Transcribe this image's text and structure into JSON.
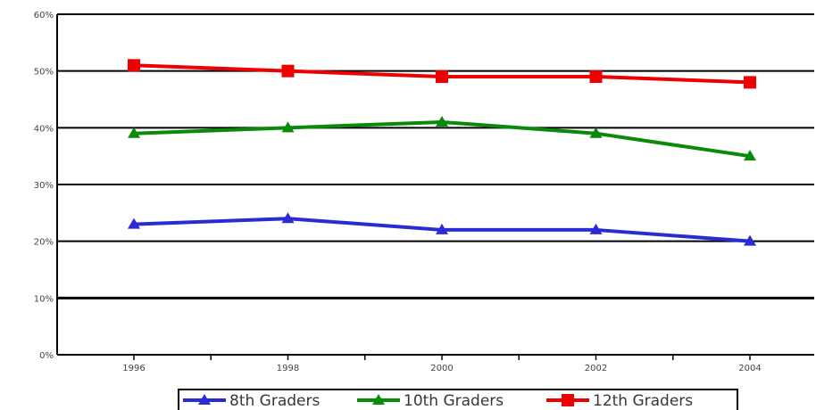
{
  "chart_data": {
    "type": "line",
    "categories": [
      "1996",
      "1998",
      "2000",
      "2002",
      "2004"
    ],
    "y_ticks": [
      "60%",
      "50%",
      "40%",
      "30%",
      "20%",
      "10%",
      "0%"
    ],
    "ylim": [
      0,
      60
    ],
    "grid": true,
    "legend_position": "bottom",
    "series": [
      {
        "name": "8th Graders",
        "color": "#2b2bd6",
        "values": [
          23,
          24,
          22,
          22,
          20
        ]
      },
      {
        "name": "10th Graders",
        "color": "#0a8a0a",
        "values": [
          39,
          40,
          41,
          39,
          35
        ]
      },
      {
        "name": "12th Graders",
        "color": "#ee0000",
        "values": [
          51,
          50,
          49,
          49,
          48
        ]
      }
    ]
  }
}
